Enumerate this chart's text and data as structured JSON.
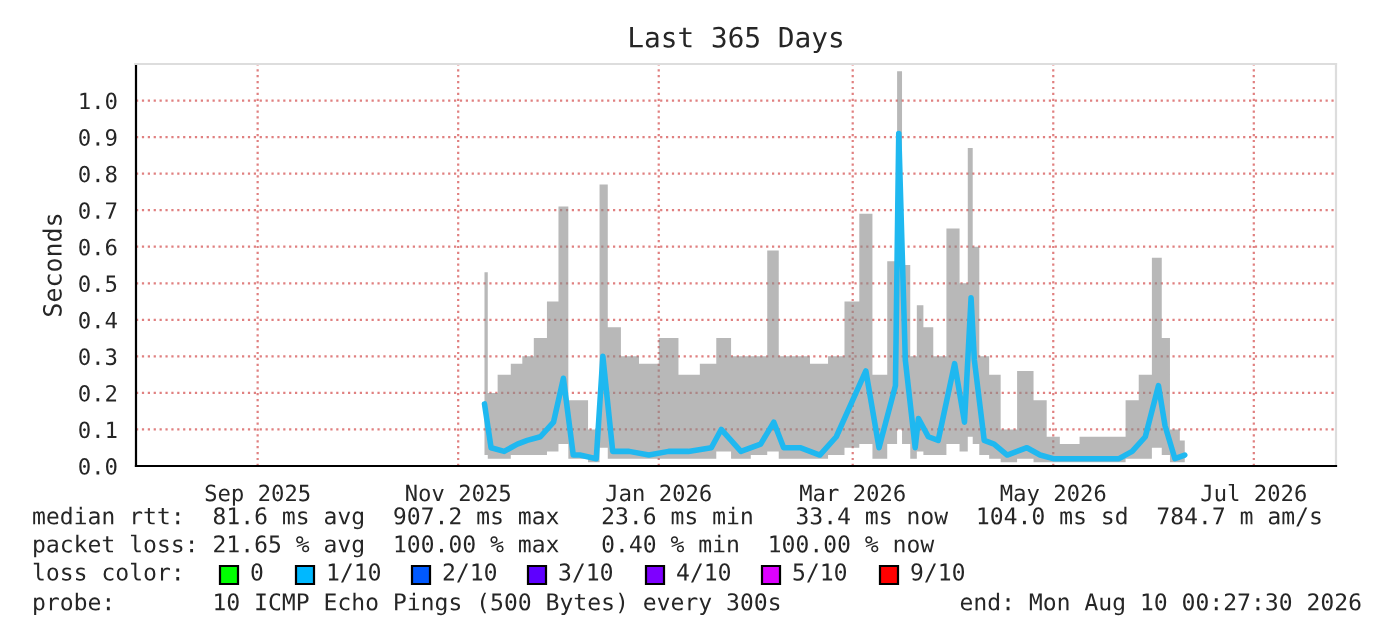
{
  "chart_data": {
    "type": "line",
    "title": "Last 365 Days",
    "ylabel": "Seconds",
    "x": [
      "2025-11-24",
      "2025-11-26",
      "2025-11-30",
      "2025-12-04",
      "2025-12-07",
      "2025-12-11",
      "2025-12-15",
      "2025-12-18",
      "2025-12-21",
      "2025-12-23",
      "2025-12-28",
      "2025-12-30",
      "2026-01-02",
      "2026-01-07",
      "2026-01-13",
      "2026-01-19",
      "2026-01-25",
      "2026-02-01",
      "2026-02-04",
      "2026-02-10",
      "2026-02-16",
      "2026-02-20",
      "2026-02-23",
      "2026-02-28",
      "2026-03-06",
      "2026-03-11",
      "2026-03-16",
      "2026-03-20",
      "2026-03-24",
      "2026-03-29",
      "2026-03-30",
      "2026-04-01",
      "2026-04-04",
      "2026-04-05",
      "2026-04-08",
      "2026-04-11",
      "2026-04-16",
      "2026-04-19",
      "2026-04-21",
      "2026-04-22",
      "2026-04-25",
      "2026-04-28",
      "2026-05-02",
      "2026-05-08",
      "2026-05-12",
      "2026-05-16",
      "2026-05-20",
      "2026-05-28",
      "2026-06-05",
      "2026-06-09",
      "2026-06-13",
      "2026-06-17",
      "2026-06-19",
      "2026-06-22",
      "2026-06-25"
    ],
    "series": [
      {
        "color": "#1fb8f0",
        "values": [
          0.17,
          0.05,
          0.04,
          0.06,
          0.07,
          0.08,
          0.12,
          0.24,
          0.03,
          0.03,
          0.02,
          0.3,
          0.04,
          0.04,
          0.03,
          0.04,
          0.04,
          0.05,
          0.1,
          0.04,
          0.06,
          0.12,
          0.05,
          0.05,
          0.03,
          0.08,
          0.18,
          0.26,
          0.05,
          0.22,
          0.91,
          0.29,
          0.05,
          0.13,
          0.08,
          0.07,
          0.28,
          0.12,
          0.46,
          0.29,
          0.07,
          0.06,
          0.03,
          0.05,
          0.03,
          0.02,
          0.02,
          0.02,
          0.02,
          0.04,
          0.08,
          0.22,
          0.11,
          0.02,
          0.03
        ],
        "lower": [
          0.03,
          0.02,
          0.02,
          0.03,
          0.03,
          0.03,
          0.04,
          0.06,
          0.02,
          0.02,
          0.01,
          0.05,
          0.02,
          0.02,
          0.02,
          0.02,
          0.02,
          0.02,
          0.04,
          0.02,
          0.03,
          0.04,
          0.02,
          0.02,
          0.02,
          0.03,
          0.05,
          0.06,
          0.02,
          0.06,
          0.1,
          0.06,
          0.02,
          0.04,
          0.03,
          0.03,
          0.06,
          0.04,
          0.08,
          0.06,
          0.03,
          0.02,
          0.01,
          0.02,
          0.01,
          0.01,
          0.01,
          0.01,
          0.01,
          0.02,
          0.02,
          0.05,
          0.03,
          0.01,
          0.01
        ],
        "upper": [
          0.53,
          0.2,
          0.25,
          0.28,
          0.3,
          0.35,
          0.45,
          0.71,
          0.18,
          0.18,
          0.1,
          0.77,
          0.38,
          0.3,
          0.28,
          0.35,
          0.25,
          0.28,
          0.35,
          0.3,
          0.3,
          0.59,
          0.3,
          0.3,
          0.28,
          0.3,
          0.45,
          0.69,
          0.25,
          0.56,
          1.08,
          0.55,
          0.3,
          0.44,
          0.38,
          0.3,
          0.65,
          0.5,
          0.87,
          0.6,
          0.3,
          0.25,
          0.1,
          0.26,
          0.18,
          0.08,
          0.06,
          0.08,
          0.08,
          0.18,
          0.25,
          0.57,
          0.35,
          0.1,
          0.07
        ]
      }
    ],
    "xlim": [
      "2025-08-10",
      "2026-08-10"
    ],
    "xticks": [
      {
        "value": "2025-09-16",
        "label": "Sep 2025"
      },
      {
        "value": "2025-11-16",
        "label": "Nov 2025"
      },
      {
        "value": "2026-01-16",
        "label": "Jan 2026"
      },
      {
        "value": "2026-03-16",
        "label": "Mar 2026"
      },
      {
        "value": "2026-05-16",
        "label": "May 2026"
      },
      {
        "value": "2026-07-16",
        "label": "Jul 2026"
      }
    ],
    "ylim": [
      0,
      1.1
    ],
    "yticks": [
      {
        "value": 0,
        "label": "0.0"
      },
      {
        "value": 0.1,
        "label": "0.1"
      },
      {
        "value": 0.2,
        "label": "0.2"
      },
      {
        "value": 0.3,
        "label": "0.3"
      },
      {
        "value": 0.4,
        "label": "0.4"
      },
      {
        "value": 0.5,
        "label": "0.5"
      },
      {
        "value": 0.6,
        "label": "0.6"
      },
      {
        "value": 0.7,
        "label": "0.7"
      },
      {
        "value": 0.8,
        "label": "0.8"
      },
      {
        "value": 0.9,
        "label": "0.9"
      },
      {
        "value": 1.0,
        "label": "1.0"
      }
    ],
    "grid": true,
    "marker": "none",
    "line_style": "solid",
    "annotations": [
      "median rtt:  81.6 ms avg  907.2 ms max   23.6 ms min   33.4 ms now  104.0 ms sd  784.7 m am/s",
      "packet loss: 21.65 % avg  100.00 % max   0.40 % min  100.00 % now",
      "loss color:",
      "0",
      "1/10",
      "2/10",
      "3/10",
      "4/10",
      "5/10",
      "9/10",
      "probe:       10 ICMP Echo Pings (500 Bytes) every 300s",
      "end: Mon Aug 10 00:27:30 2026"
    ]
  }
}
